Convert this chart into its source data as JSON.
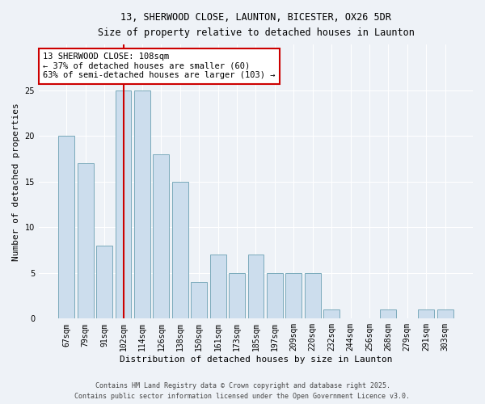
{
  "title1": "13, SHERWOOD CLOSE, LAUNTON, BICESTER, OX26 5DR",
  "title2": "Size of property relative to detached houses in Launton",
  "xlabel": "Distribution of detached houses by size in Launton",
  "ylabel": "Number of detached properties",
  "categories": [
    "67sqm",
    "79sqm",
    "91sqm",
    "102sqm",
    "114sqm",
    "126sqm",
    "138sqm",
    "150sqm",
    "161sqm",
    "173sqm",
    "185sqm",
    "197sqm",
    "209sqm",
    "220sqm",
    "232sqm",
    "244sqm",
    "256sqm",
    "268sqm",
    "279sqm",
    "291sqm",
    "303sqm"
  ],
  "values": [
    20,
    17,
    8,
    25,
    25,
    18,
    15,
    4,
    7,
    5,
    7,
    5,
    5,
    5,
    1,
    0,
    0,
    1,
    0,
    1,
    1
  ],
  "bar_color": "#ccdded",
  "bar_edge_color": "#7aaabb",
  "vline_x": 3,
  "vline_color": "#cc0000",
  "annotation_text": "13 SHERWOOD CLOSE: 108sqm\n← 37% of detached houses are smaller (60)\n63% of semi-detached houses are larger (103) →",
  "annotation_box_facecolor": "#ffffff",
  "annotation_box_edgecolor": "#cc0000",
  "ylim": [
    0,
    30
  ],
  "yticks": [
    0,
    5,
    10,
    15,
    20,
    25
  ],
  "footer1": "Contains HM Land Registry data © Crown copyright and database right 2025.",
  "footer2": "Contains public sector information licensed under the Open Government Licence v3.0.",
  "bg_color": "#eef2f7",
  "grid_color": "#ffffff",
  "tick_label_fontsize": 7,
  "ylabel_fontsize": 8,
  "xlabel_fontsize": 8
}
